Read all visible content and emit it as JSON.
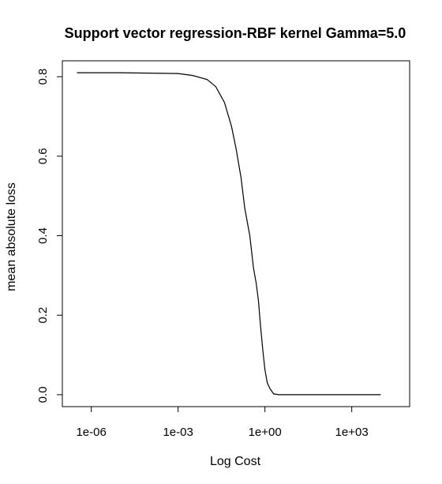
{
  "chart_data": {
    "type": "line",
    "title": "Support vector regression-RBF kernel Gamma=5.0",
    "xlabel": "Log Cost",
    "ylabel": "mean absolute loss",
    "x_scale": "log10",
    "xlim": [
      1e-07,
      100000.0
    ],
    "ylim": [
      -0.03,
      0.84
    ],
    "x_ticks": [
      1e-06,
      0.001,
      1,
      1000.0
    ],
    "x_tick_labels": [
      "1e-06",
      "1e-03",
      "1e+00",
      "1e+03"
    ],
    "y_ticks": [
      0.0,
      0.2,
      0.4,
      0.6,
      0.8
    ],
    "y_tick_labels": [
      "0.0",
      "0.2",
      "0.4",
      "0.6",
      "0.8"
    ],
    "grid": false,
    "series": [
      {
        "x": [
          3.2e-07,
          1e-05,
          0.0001,
          0.001,
          0.0032,
          0.01,
          0.02,
          0.04,
          0.07,
          0.1,
          0.15,
          0.2,
          0.3,
          0.4,
          0.5,
          0.6,
          0.7,
          0.85,
          1.0,
          1.2,
          1.5,
          2.0,
          3.0,
          10000.0
        ],
        "y": [
          0.81,
          0.81,
          0.809,
          0.808,
          0.803,
          0.793,
          0.775,
          0.735,
          0.675,
          0.62,
          0.545,
          0.47,
          0.4,
          0.32,
          0.28,
          0.235,
          0.175,
          0.11,
          0.063,
          0.03,
          0.015,
          0.002,
          0.0,
          0.0
        ]
      }
    ]
  }
}
